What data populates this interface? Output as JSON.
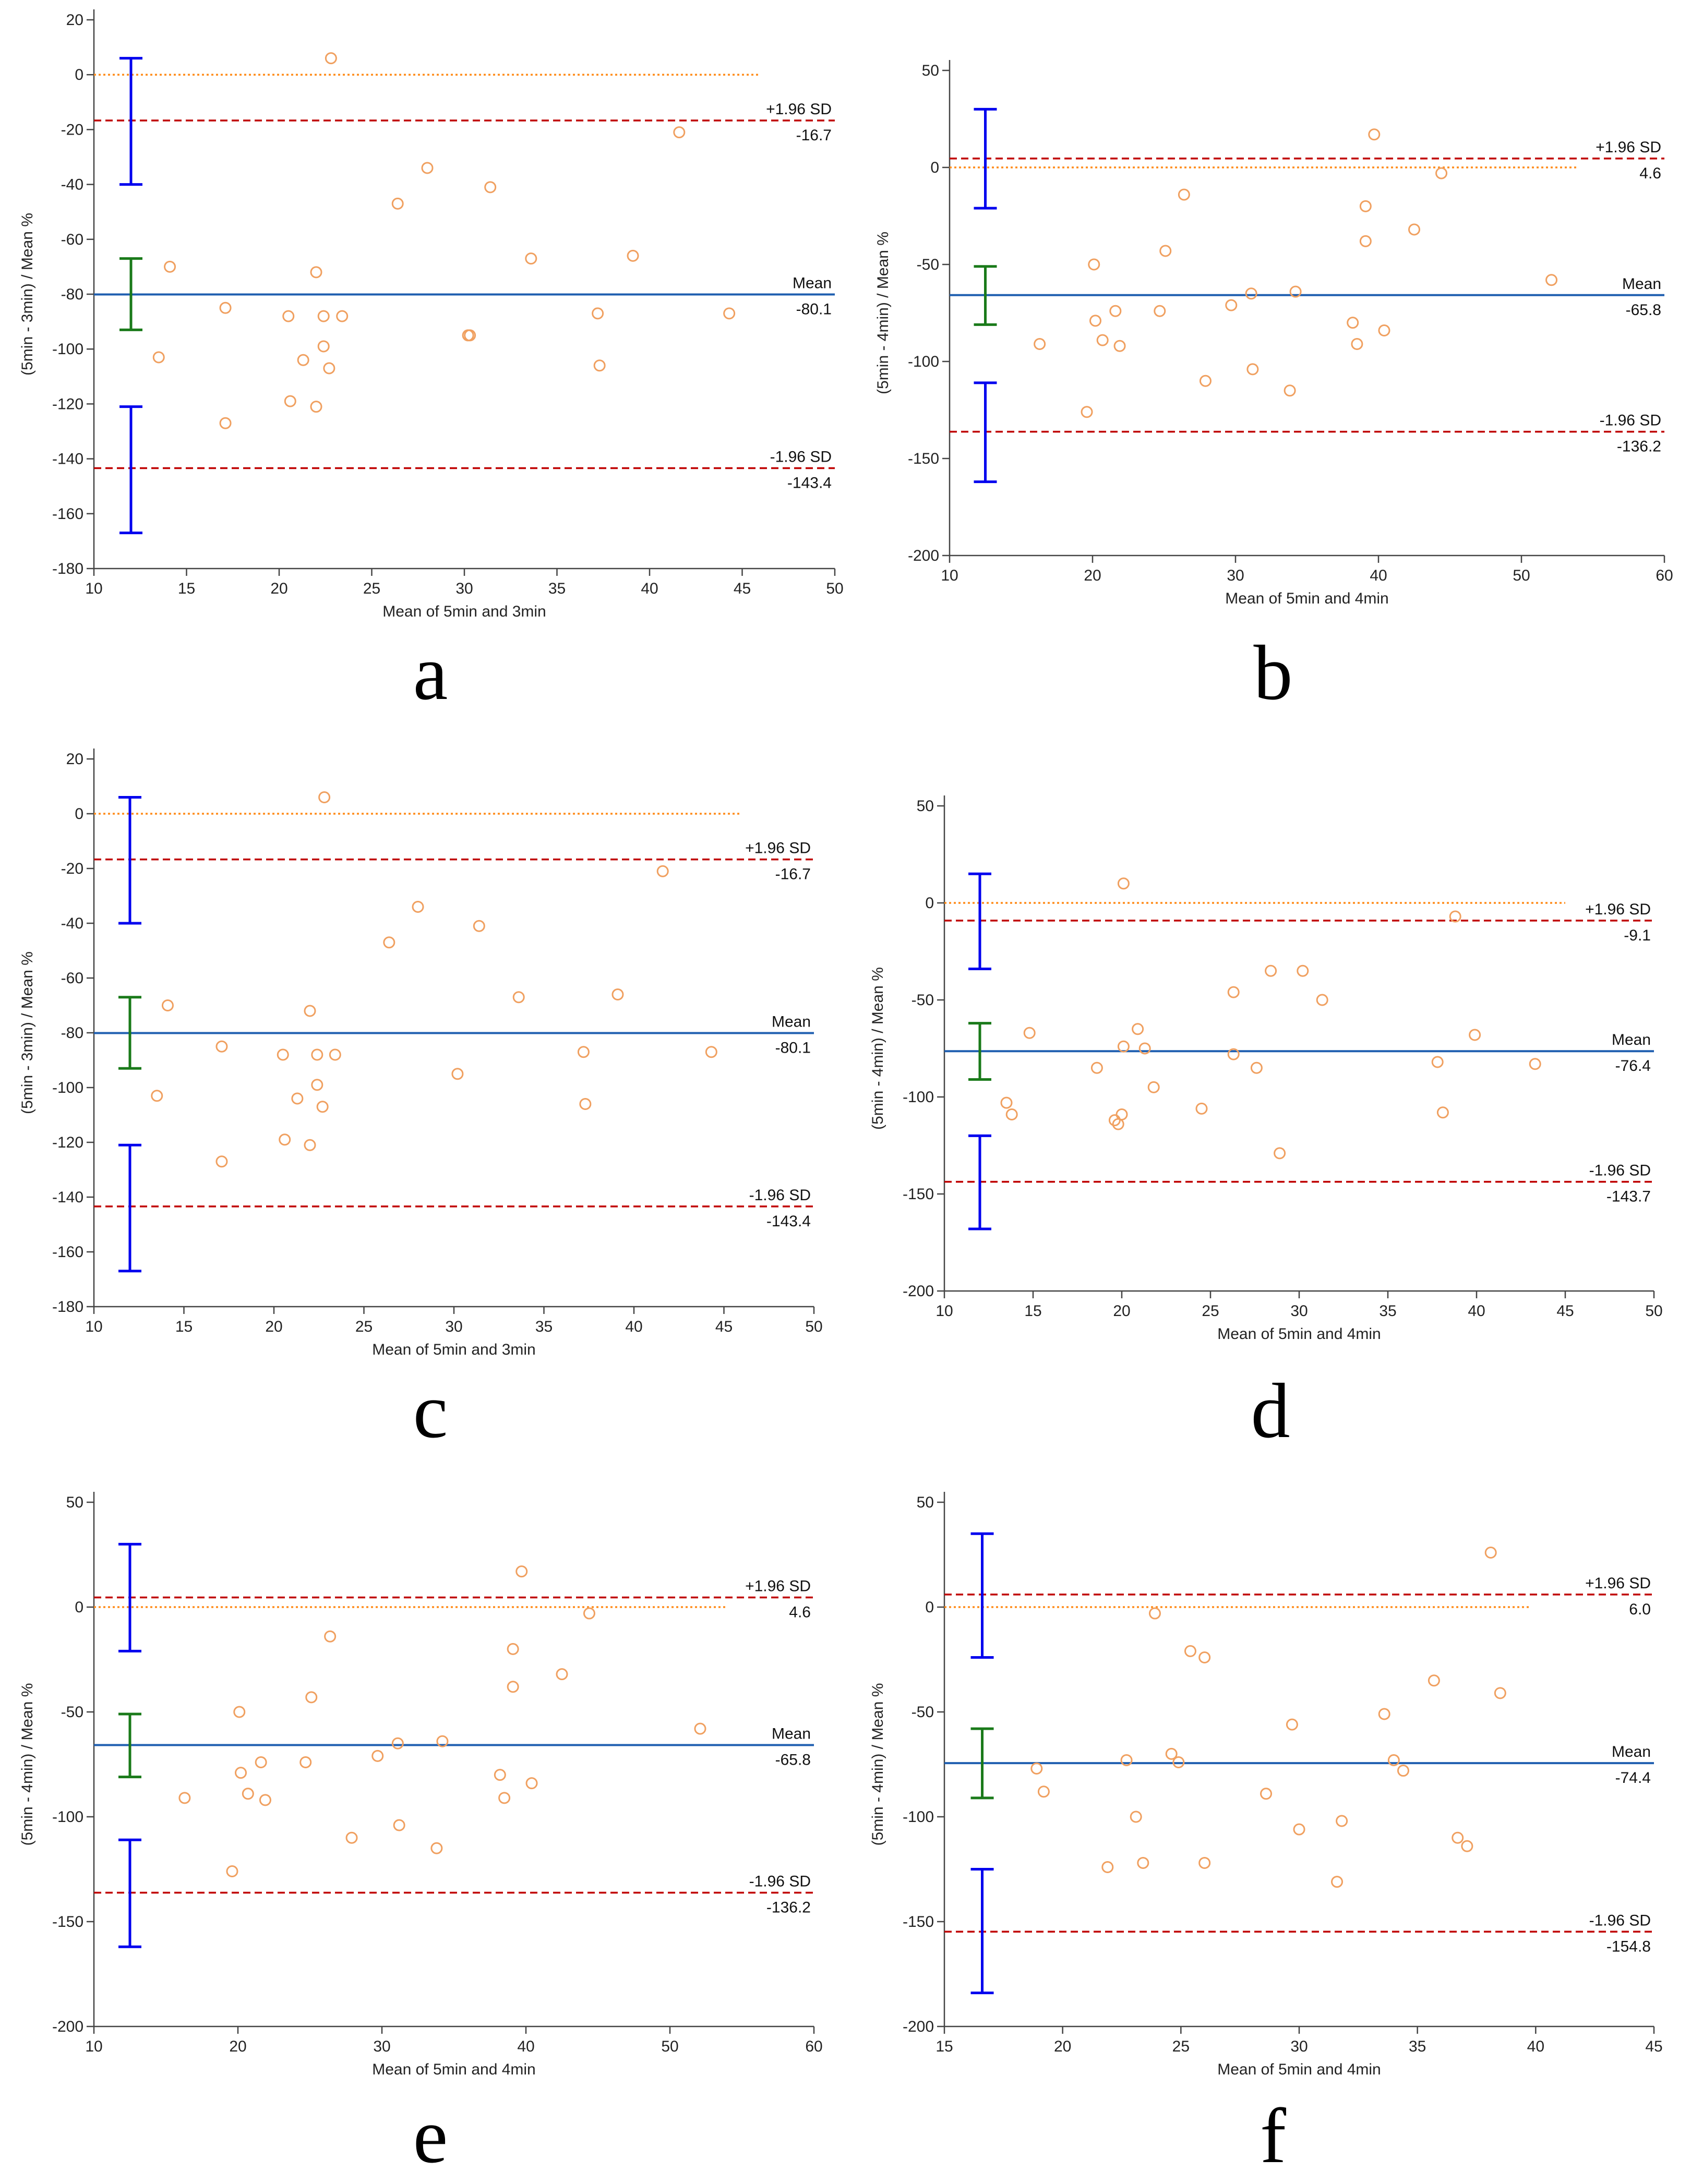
{
  "colors": {
    "point": "#f0a060",
    "mean_line": "#1f5fb0",
    "loa_line": "#c00000",
    "zero_line": "#ff8c1a",
    "loa_ci": "#0000ee",
    "mean_ci": "#1a7a1a",
    "axis": "#444444"
  },
  "chart_data": [
    {
      "type": "scatter",
      "panel_label": "a",
      "xlabel": "Mean of 5min and 3min",
      "ylabel": "(5min - 3min) / Mean %",
      "xlim": [
        10,
        50
      ],
      "ylim": [
        -180,
        20
      ],
      "x_ticks": [
        10,
        15,
        20,
        25,
        30,
        35,
        40,
        45,
        50
      ],
      "y_ticks": [
        20,
        0,
        -20,
        -40,
        -60,
        -80,
        -100,
        -120,
        -140,
        -160,
        -180
      ],
      "zero_end": 46,
      "upper_loa": -16.7,
      "mean": -80.1,
      "lower_loa": -143.4,
      "upper_label": "+1.96 SD",
      "mean_label": "Mean",
      "lower_label": "-1.96 SD",
      "upper_value": "-16.7",
      "mean_value": "-80.1",
      "lower_value": "-143.4",
      "ci_x": 12,
      "upper_ci": [
        -40,
        6
      ],
      "mean_ci": [
        -93,
        -67
      ],
      "lower_ci": [
        -167,
        -121
      ],
      "points": [
        [
          22.8,
          6
        ],
        [
          41.6,
          -21
        ],
        [
          28,
          -34
        ],
        [
          26.4,
          -47
        ],
        [
          31.4,
          -41
        ],
        [
          33.6,
          -67
        ],
        [
          39.1,
          -66
        ],
        [
          14.1,
          -70
        ],
        [
          22,
          -72
        ],
        [
          17.1,
          -85
        ],
        [
          20.5,
          -88
        ],
        [
          22.4,
          -88
        ],
        [
          23.4,
          -88
        ],
        [
          37.2,
          -87
        ],
        [
          44.3,
          -87
        ],
        [
          30.2,
          -95
        ],
        [
          30.3,
          -95
        ],
        [
          22.4,
          -99
        ],
        [
          13.5,
          -103
        ],
        [
          21.3,
          -104
        ],
        [
          22.7,
          -107
        ],
        [
          37.3,
          -106
        ],
        [
          20.6,
          -119
        ],
        [
          22,
          -121
        ],
        [
          17.1,
          -127
        ]
      ]
    },
    {
      "type": "scatter",
      "panel_label": "b",
      "xlabel": "Mean of 5min and 4min",
      "ylabel": "(5min - 4min) / Mean %",
      "xlim": [
        10,
        60
      ],
      "ylim": [
        -200,
        50
      ],
      "x_ticks": [
        10,
        20,
        30,
        40,
        50,
        60
      ],
      "y_ticks": [
        50,
        0,
        -50,
        -100,
        -150,
        -200
      ],
      "zero_end": 54,
      "upper_loa": 4.6,
      "mean": -65.8,
      "lower_loa": -136.2,
      "upper_label": "+1.96 SD",
      "mean_label": "Mean",
      "lower_label": "-1.96 SD",
      "upper_value": "4.6",
      "mean_value": "-65.8",
      "lower_value": "-136.2",
      "ci_x": 12.5,
      "upper_ci": [
        -21,
        30
      ],
      "mean_ci": [
        -81,
        -51
      ],
      "lower_ci": [
        -162,
        -111
      ],
      "points": [
        [
          39.7,
          17
        ],
        [
          44.4,
          -3
        ],
        [
          26.4,
          -14
        ],
        [
          39.1,
          -20
        ],
        [
          42.5,
          -32
        ],
        [
          39.1,
          -38
        ],
        [
          25.1,
          -43
        ],
        [
          20.1,
          -50
        ],
        [
          52.1,
          -58
        ],
        [
          34.2,
          -64
        ],
        [
          31.1,
          -65
        ],
        [
          29.7,
          -71
        ],
        [
          21.6,
          -74
        ],
        [
          24.7,
          -74
        ],
        [
          20.2,
          -79
        ],
        [
          38.2,
          -80
        ],
        [
          40.4,
          -84
        ],
        [
          20.7,
          -89
        ],
        [
          16.3,
          -91
        ],
        [
          21.9,
          -92
        ],
        [
          38.5,
          -91
        ],
        [
          31.2,
          -104
        ],
        [
          27.9,
          -110
        ],
        [
          33.8,
          -115
        ],
        [
          19.6,
          -126
        ]
      ]
    },
    {
      "type": "scatter",
      "panel_label": "c",
      "xlabel": "Mean of 5min and 3min",
      "ylabel": "(5min - 3min) / Mean %",
      "xlim": [
        10,
        50
      ],
      "ylim": [
        -180,
        20
      ],
      "x_ticks": [
        10,
        15,
        20,
        25,
        30,
        35,
        40,
        45,
        50
      ],
      "y_ticks": [
        20,
        0,
        -20,
        -40,
        -60,
        -80,
        -100,
        -120,
        -140,
        -160,
        -180
      ],
      "zero_end": 46,
      "upper_loa": -16.7,
      "mean": -80.1,
      "lower_loa": -143.4,
      "upper_label": "+1.96 SD",
      "mean_label": "Mean",
      "lower_label": "-1.96 SD",
      "upper_value": "-16.7",
      "mean_value": "-80.1",
      "lower_value": "-143.4",
      "ci_x": 12,
      "upper_ci": [
        -40,
        6
      ],
      "mean_ci": [
        -93,
        -67
      ],
      "lower_ci": [
        -167,
        -121
      ],
      "points": [
        [
          22.8,
          6
        ],
        [
          41.6,
          -21
        ],
        [
          28,
          -34
        ],
        [
          26.4,
          -47
        ],
        [
          31.4,
          -41
        ],
        [
          33.6,
          -67
        ],
        [
          39.1,
          -66
        ],
        [
          14.1,
          -70
        ],
        [
          22,
          -72
        ],
        [
          17.1,
          -85
        ],
        [
          20.5,
          -88
        ],
        [
          22.4,
          -88
        ],
        [
          23.4,
          -88
        ],
        [
          37.2,
          -87
        ],
        [
          44.3,
          -87
        ],
        [
          30.2,
          -95
        ],
        [
          22.4,
          -99
        ],
        [
          13.5,
          -103
        ],
        [
          21.3,
          -104
        ],
        [
          22.7,
          -107
        ],
        [
          37.3,
          -106
        ],
        [
          20.6,
          -119
        ],
        [
          22,
          -121
        ],
        [
          17.1,
          -127
        ]
      ]
    },
    {
      "type": "scatter",
      "panel_label": "d",
      "xlabel": "Mean of 5min and 4min",
      "ylabel": "(5min - 4min) / Mean %",
      "xlim": [
        10,
        50
      ],
      "ylim": [
        -200,
        50
      ],
      "x_ticks": [
        10,
        15,
        20,
        25,
        30,
        35,
        40,
        45,
        50
      ],
      "y_ticks": [
        50,
        0,
        -50,
        -100,
        -150,
        -200
      ],
      "zero_end": 45,
      "upper_loa": -9.1,
      "mean": -76.4,
      "lower_loa": -143.7,
      "upper_label": "+1.96 SD",
      "mean_label": "Mean",
      "lower_label": "-1.96 SD",
      "upper_value": "-9.1",
      "mean_value": "-76.4",
      "lower_value": "-143.7",
      "ci_x": 12,
      "upper_ci": [
        -34,
        15
      ],
      "mean_ci": [
        -91,
        -62
      ],
      "lower_ci": [
        -168,
        -120
      ],
      "points": [
        [
          20.1,
          10
        ],
        [
          38.8,
          -7
        ],
        [
          28.4,
          -35
        ],
        [
          30.2,
          -35
        ],
        [
          26.3,
          -46
        ],
        [
          31.3,
          -50
        ],
        [
          14.8,
          -67
        ],
        [
          20.9,
          -65
        ],
        [
          39.9,
          -68
        ],
        [
          20.1,
          -74
        ],
        [
          21.3,
          -75
        ],
        [
          26.3,
          -78
        ],
        [
          37.8,
          -82
        ],
        [
          43.3,
          -83
        ],
        [
          18.6,
          -85
        ],
        [
          27.6,
          -85
        ],
        [
          21.8,
          -95
        ],
        [
          13.5,
          -103
        ],
        [
          13.8,
          -109
        ],
        [
          24.5,
          -106
        ],
        [
          38.1,
          -108
        ],
        [
          19.8,
          -114
        ],
        [
          19.6,
          -112
        ],
        [
          20,
          -109
        ],
        [
          28.9,
          -129
        ]
      ]
    },
    {
      "type": "scatter",
      "panel_label": "e",
      "xlabel": "Mean of 5min and 4min",
      "ylabel": "(5min - 4min) / Mean %",
      "xlim": [
        10,
        60
      ],
      "ylim": [
        -200,
        50
      ],
      "x_ticks": [
        10,
        20,
        30,
        40,
        50,
        60
      ],
      "y_ticks": [
        50,
        0,
        -50,
        -100,
        -150,
        -200
      ],
      "zero_end": 54,
      "upper_loa": 4.6,
      "mean": -65.8,
      "lower_loa": -136.2,
      "upper_label": "+1.96 SD",
      "mean_label": "Mean",
      "lower_label": "-1.96 SD",
      "upper_value": "4.6",
      "mean_value": "-65.8",
      "lower_value": "-136.2",
      "ci_x": 12.5,
      "upper_ci": [
        -21,
        30
      ],
      "mean_ci": [
        -81,
        -51
      ],
      "lower_ci": [
        -162,
        -111
      ],
      "points": [
        [
          39.7,
          17
        ],
        [
          44.4,
          -3
        ],
        [
          26.4,
          -14
        ],
        [
          39.1,
          -20
        ],
        [
          42.5,
          -32
        ],
        [
          39.1,
          -38
        ],
        [
          25.1,
          -43
        ],
        [
          20.1,
          -50
        ],
        [
          52.1,
          -58
        ],
        [
          34.2,
          -64
        ],
        [
          31.1,
          -65
        ],
        [
          29.7,
          -71
        ],
        [
          21.6,
          -74
        ],
        [
          24.7,
          -74
        ],
        [
          20.2,
          -79
        ],
        [
          38.2,
          -80
        ],
        [
          40.4,
          -84
        ],
        [
          20.7,
          -89
        ],
        [
          16.3,
          -91
        ],
        [
          21.9,
          -92
        ],
        [
          38.5,
          -91
        ],
        [
          31.2,
          -104
        ],
        [
          27.9,
          -110
        ],
        [
          33.8,
          -115
        ],
        [
          19.6,
          -126
        ]
      ]
    },
    {
      "type": "scatter",
      "panel_label": "f",
      "xlabel": "Mean of 5min and 4min",
      "ylabel": "(5min - 4min) / Mean %",
      "xlim": [
        15,
        45
      ],
      "ylim": [
        -200,
        50
      ],
      "x_ticks": [
        15,
        20,
        25,
        30,
        35,
        40,
        45
      ],
      "y_ticks": [
        50,
        0,
        -50,
        -100,
        -150,
        -200
      ],
      "zero_end": 39.8,
      "upper_loa": 6.0,
      "mean": -74.4,
      "lower_loa": -154.8,
      "upper_label": "+1.96 SD",
      "mean_label": "Mean",
      "lower_label": "-1.96 SD",
      "upper_value": "6.0",
      "mean_value": "-74.4",
      "lower_value": "-154.8",
      "ci_x": 16.6,
      "upper_ci": [
        -24,
        35
      ],
      "mean_ci": [
        -91,
        -58
      ],
      "lower_ci": [
        -184,
        -125
      ],
      "points": [
        [
          38.1,
          26
        ],
        [
          23.9,
          -3
        ],
        [
          25.4,
          -21
        ],
        [
          26,
          -24
        ],
        [
          35.7,
          -35
        ],
        [
          38.5,
          -41
        ],
        [
          33.6,
          -51
        ],
        [
          29.7,
          -56
        ],
        [
          24.6,
          -70
        ],
        [
          24.9,
          -74
        ],
        [
          22.7,
          -73
        ],
        [
          34,
          -73
        ],
        [
          34.4,
          -78
        ],
        [
          18.9,
          -77
        ],
        [
          19.2,
          -88
        ],
        [
          28.6,
          -89
        ],
        [
          23.1,
          -100
        ],
        [
          31.8,
          -102
        ],
        [
          30,
          -106
        ],
        [
          36.7,
          -110
        ],
        [
          37.1,
          -114
        ],
        [
          23.4,
          -122
        ],
        [
          21.9,
          -124
        ],
        [
          26,
          -122
        ],
        [
          31.6,
          -131
        ]
      ]
    }
  ]
}
